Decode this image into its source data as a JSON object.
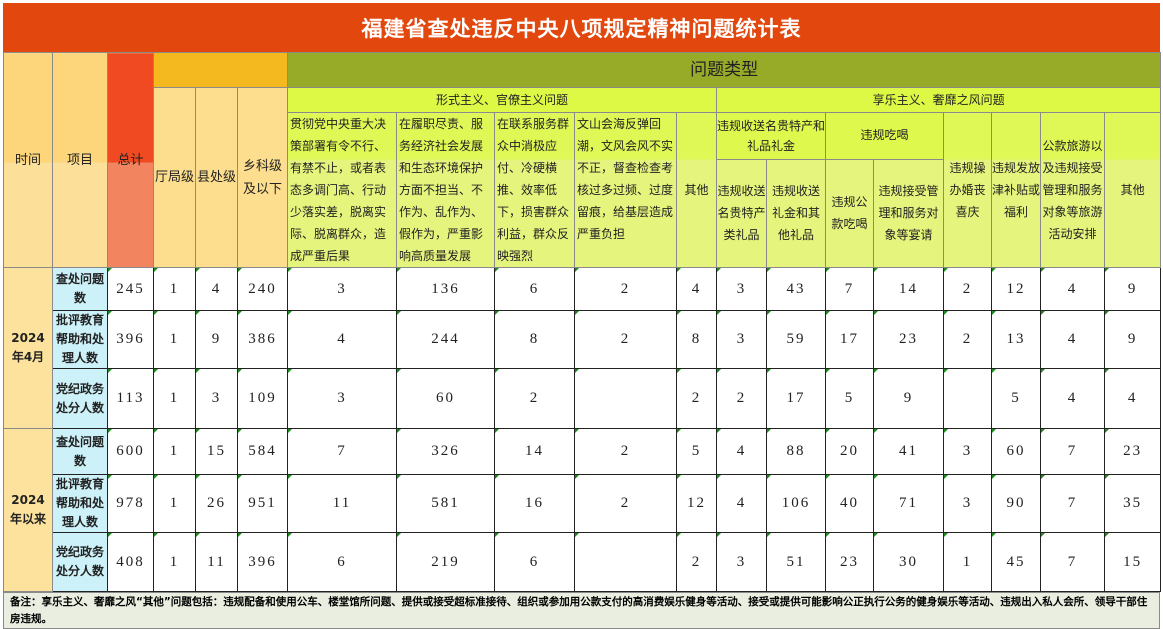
{
  "title": "福建省查处违反中央八项规定精神问题统计表",
  "headers": {
    "time": "时间",
    "item": "项目",
    "total": "总计",
    "problem_type": "问题类型",
    "levels": [
      "厅局级",
      "县处级",
      "乡科级及以下"
    ],
    "group_formalism": "形式主义、官僚主义问题",
    "group_hedonism": "享乐主义、奢靡之风问题",
    "formalism_cols": [
      "贯彻党中央重大决策部署有令不行、有禁不止，或者表态多调门高、行动少落实差，脱离实际、脱离群众，造成严重后果",
      "在履职尽责、服务经济社会发展和生态环境保护方面不担当、不作为、乱作为、假作为，严重影响高质量发展",
      "在联系服务群众中消极应付、冷硬横推、效率低下，损害群众利益，群众反映强烈",
      "文山会海反弹回潮，文风会风不实不正，督查检查考核过多过频、过度留痕，给基层造成严重负担",
      "其他"
    ],
    "hed_group_gifts": "违规收送名贵特产和礼品礼金",
    "hed_group_dining": "违规吃喝",
    "hed_gifts_cols": [
      "违规收送名贵特产类礼品",
      "违规收送礼金和其他礼品"
    ],
    "hed_dining_cols": [
      "违规公款吃喝",
      "违规接受管理和服务对象等宴请"
    ],
    "hed_other_cols": [
      "违规操办婚丧喜庆",
      "违规发放津补贴或福利",
      "公款旅游以及违规接受管理和服务对象等旅游活动安排",
      "其他"
    ]
  },
  "periods": [
    {
      "label": "2024年4月",
      "rows": [
        {
          "item": "查处问题数",
          "values": [
            "245",
            "1",
            "4",
            "240",
            "3",
            "136",
            "6",
            "2",
            "4",
            "3",
            "43",
            "7",
            "14",
            "2",
            "12",
            "4",
            "9"
          ]
        },
        {
          "item": "批评教育帮助和处理人数",
          "values": [
            "396",
            "1",
            "9",
            "386",
            "4",
            "244",
            "8",
            "2",
            "8",
            "3",
            "59",
            "17",
            "23",
            "2",
            "13",
            "4",
            "9"
          ]
        },
        {
          "item": "党纪政务处分人数",
          "values": [
            "113",
            "1",
            "3",
            "109",
            "3",
            "60",
            "2",
            "",
            "2",
            "2",
            "17",
            "5",
            "9",
            "",
            "5",
            "4",
            "4"
          ]
        }
      ]
    },
    {
      "label": "2024年以来",
      "rows": [
        {
          "item": "查处问题数",
          "values": [
            "600",
            "1",
            "15",
            "584",
            "7",
            "326",
            "14",
            "2",
            "5",
            "4",
            "88",
            "20",
            "41",
            "3",
            "60",
            "7",
            "23"
          ]
        },
        {
          "item": "批评教育帮助和处理人数",
          "values": [
            "978",
            "1",
            "26",
            "951",
            "11",
            "581",
            "16",
            "2",
            "12",
            "4",
            "106",
            "40",
            "71",
            "3",
            "90",
            "7",
            "35"
          ]
        },
        {
          "item": "党纪政务处分人数",
          "values": [
            "408",
            "1",
            "11",
            "396",
            "6",
            "219",
            "6",
            "",
            "2",
            "3",
            "51",
            "23",
            "30",
            "1",
            "45",
            "7",
            "15"
          ]
        }
      ]
    }
  ],
  "note": "备注：享乐主义、奢靡之风“其他”问题包括：违规配备和使用公车、楼堂馆所问题、提供或接受超标准接待、组织或参加用公款支付的高消费娱乐健身等活动、接受或提供可能影响公正执行公务的健身娱乐等活动、违规出入私人会所、领导干部住房违规。"
}
